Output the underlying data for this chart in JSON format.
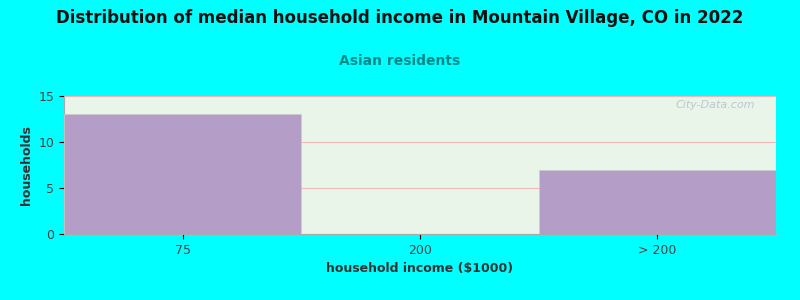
{
  "title": "Distribution of median household income in Mountain Village, CO in 2022",
  "subtitle": "Asian residents",
  "xlabel": "household income ($1000)",
  "ylabel": "households",
  "categories": [
    "75",
    "200",
    "> 200"
  ],
  "values": [
    13,
    0,
    7
  ],
  "bar_color": "#b49ec8",
  "background_color": "#00ffff",
  "plot_bg_color": "#e8f5e8",
  "grid_color": "#f0b8b8",
  "title_fontsize": 12,
  "subtitle_fontsize": 10,
  "subtitle_color": "#008888",
  "axis_label_color": "#333333",
  "tick_color": "#444444",
  "ylim": [
    0,
    15
  ],
  "yticks": [
    0,
    5,
    10,
    15
  ],
  "watermark": "City-Data.com",
  "watermark_color": "#b8b8c8"
}
